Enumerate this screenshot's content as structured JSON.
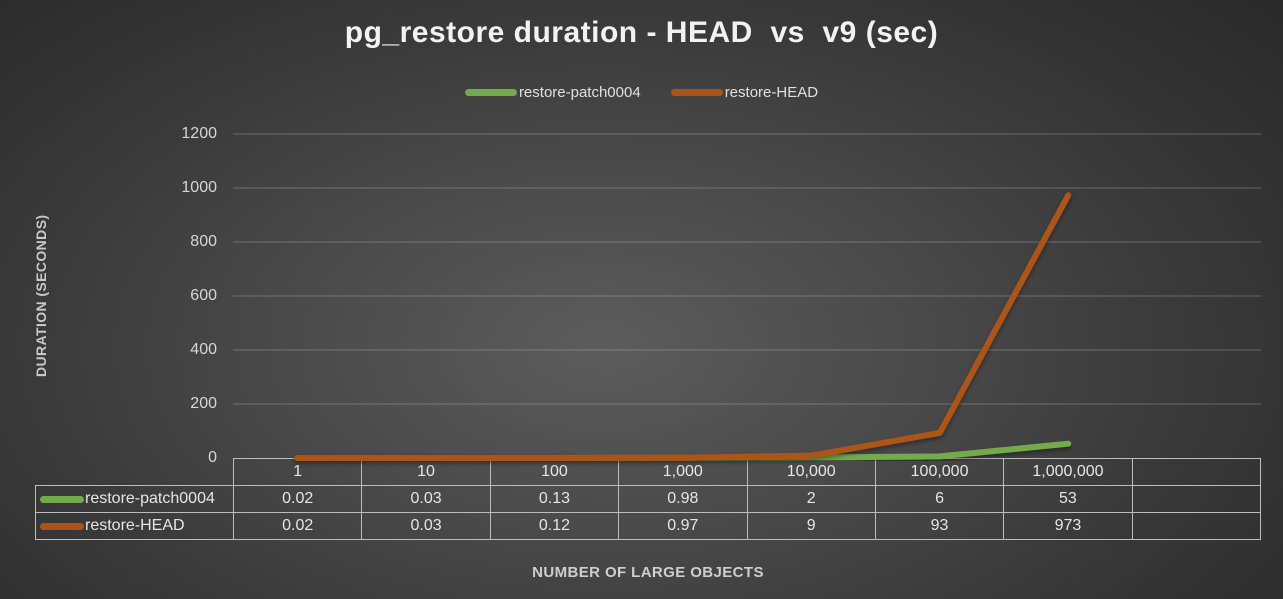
{
  "title": "pg_restore duration - HEAD  vs  v9 (sec)",
  "legend": [
    {
      "label": "restore-patch0004",
      "color": "#73AB4A"
    },
    {
      "label": "restore-HEAD",
      "color": "#AC5418"
    }
  ],
  "y_axis": {
    "title": "DURATION (SECONDS)",
    "ticks": [
      "1200",
      "1000",
      "800",
      "600",
      "400",
      "200",
      "0"
    ]
  },
  "x_axis": {
    "title": "NUMBER OF LARGE OBJECTS"
  },
  "chart_data": {
    "type": "line",
    "title": "pg_restore duration - HEAD  vs  v9 (sec)",
    "categories": [
      "1",
      "10",
      "100",
      "1,000",
      "10,000",
      "100,000",
      "1,000,000"
    ],
    "series": [
      {
        "name": "restore-patch0004",
        "color": "#73AB4A",
        "values": [
          0.02,
          0.03,
          0.13,
          0.98,
          2,
          6,
          53
        ]
      },
      {
        "name": "restore-HEAD",
        "color": "#AC5418",
        "values": [
          0.02,
          0.03,
          0.12,
          0.97,
          9,
          93,
          973
        ]
      }
    ],
    "xlabel": "NUMBER OF LARGE OBJECTS",
    "ylabel": "DURATION (SECONDS)",
    "ylim": [
      0,
      1200
    ],
    "ytick_step": 200,
    "grid": true,
    "gridline_color": "rgba(255,255,255,0.24)",
    "legend_position": "top",
    "data_table_shown": true
  },
  "data_table": {
    "header": [
      "1",
      "10",
      "100",
      "1,000",
      "10,000",
      "100,000",
      "1,000,000",
      ""
    ],
    "rows": [
      {
        "label": "restore-patch0004",
        "color": "#73AB4A",
        "values": [
          "0.02",
          "0.03",
          "0.13",
          "0.98",
          "2",
          "6",
          "53",
          ""
        ]
      },
      {
        "label": "restore-HEAD",
        "color": "#AC5418",
        "values": [
          "0.02",
          "0.03",
          "0.12",
          "0.97",
          "9",
          "93",
          "973",
          ""
        ]
      }
    ]
  }
}
